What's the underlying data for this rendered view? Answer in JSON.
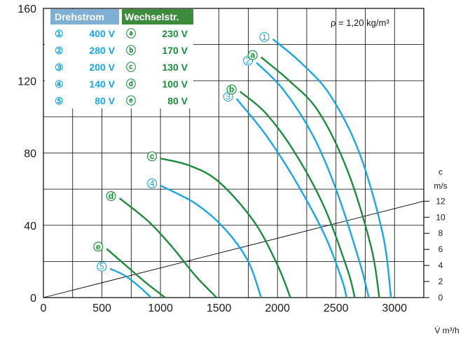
{
  "chart_data": {
    "type": "line",
    "xlabel": "V̇ m³/h",
    "ylabel": "",
    "xlim": [
      0,
      3250
    ],
    "ylim": [
      0,
      160
    ],
    "xticks": [
      "0",
      "500",
      "1000",
      "1500",
      "2000",
      "2500",
      "3000"
    ],
    "yticks": [
      "0",
      "40",
      "80",
      "120",
      "160"
    ],
    "right_axis": {
      "label_top": "c",
      "label_unit": "m/s",
      "ticks": [
        "0",
        "2",
        "4",
        "6",
        "8",
        "10",
        "12"
      ]
    },
    "annotation": "ρ = 1,20 kg/m³",
    "legend": {
      "headers": [
        "Drehstrom",
        "Wechselstr."
      ],
      "rows": [
        {
          "m1": "①",
          "v1": "400 V",
          "m2": "ⓐ",
          "v2": "230 V"
        },
        {
          "m1": "②",
          "v1": "280 V",
          "m2": "ⓑ",
          "v2": "170 V"
        },
        {
          "m1": "③",
          "v1": "200 V",
          "m2": "ⓒ",
          "v2": "130 V"
        },
        {
          "m1": "④",
          "v1": "140 V",
          "m2": "ⓓ",
          "v2": "100 V"
        },
        {
          "m1": "⑤",
          "v1": "80 V",
          "m2": "ⓔ",
          "v2": "80 V"
        }
      ]
    },
    "colors": {
      "drehstrom": "#1aa6de",
      "wechselstrom": "#1f8a3c",
      "header_blue": "#7fb0d4",
      "header_green": "#3d8b3d",
      "grid": "#000000"
    },
    "series": [
      {
        "marker": "①",
        "group": "drehstrom",
        "points": [
          [
            1960,
            143
          ],
          [
            2200,
            130
          ],
          [
            2450,
            112
          ],
          [
            2700,
            80
          ],
          [
            2900,
            35
          ],
          [
            2970,
            0
          ]
        ]
      },
      {
        "marker": "②",
        "group": "drehstrom",
        "points": [
          [
            1820,
            130
          ],
          [
            2050,
            115
          ],
          [
            2300,
            90
          ],
          [
            2500,
            60
          ],
          [
            2700,
            20
          ],
          [
            2780,
            0
          ]
        ]
      },
      {
        "marker": "③",
        "group": "drehstrom",
        "points": [
          [
            1650,
            110
          ],
          [
            1900,
            90
          ],
          [
            2150,
            65
          ],
          [
            2400,
            35
          ],
          [
            2550,
            10
          ],
          [
            2590,
            0
          ]
        ]
      },
      {
        "marker": "④",
        "group": "drehstrom",
        "points": [
          [
            1000,
            62
          ],
          [
            1300,
            52
          ],
          [
            1550,
            38
          ],
          [
            1750,
            20
          ],
          [
            1860,
            0
          ]
        ]
      },
      {
        "marker": "⑤",
        "group": "drehstrom",
        "points": [
          [
            570,
            16
          ],
          [
            700,
            12
          ],
          [
            820,
            6
          ],
          [
            920,
            0
          ]
        ]
      },
      {
        "marker": "ⓐ",
        "group": "wechselstrom",
        "points": [
          [
            1860,
            133
          ],
          [
            2100,
            120
          ],
          [
            2350,
            103
          ],
          [
            2600,
            70
          ],
          [
            2800,
            28
          ],
          [
            2870,
            0
          ]
        ]
      },
      {
        "marker": "ⓑ",
        "group": "wechselstrom",
        "points": [
          [
            1680,
            114
          ],
          [
            1900,
            102
          ],
          [
            2150,
            80
          ],
          [
            2400,
            50
          ],
          [
            2600,
            15
          ],
          [
            2660,
            0
          ]
        ]
      },
      {
        "marker": "ⓒ",
        "group": "wechselstrom",
        "points": [
          [
            1000,
            77
          ],
          [
            1250,
            73
          ],
          [
            1500,
            64
          ],
          [
            1800,
            42
          ],
          [
            2000,
            18
          ],
          [
            2110,
            0
          ]
        ]
      },
      {
        "marker": "ⓓ",
        "group": "wechselstrom",
        "points": [
          [
            650,
            55
          ],
          [
            900,
            42
          ],
          [
            1100,
            28
          ],
          [
            1300,
            12
          ],
          [
            1480,
            0
          ]
        ]
      },
      {
        "marker": "ⓔ",
        "group": "wechselstrom",
        "points": [
          [
            540,
            27
          ],
          [
            700,
            18
          ],
          [
            880,
            8
          ],
          [
            1040,
            0
          ]
        ]
      }
    ],
    "velocity_line": {
      "points": [
        [
          0,
          0
        ],
        [
          3250,
          12
        ]
      ]
    }
  }
}
